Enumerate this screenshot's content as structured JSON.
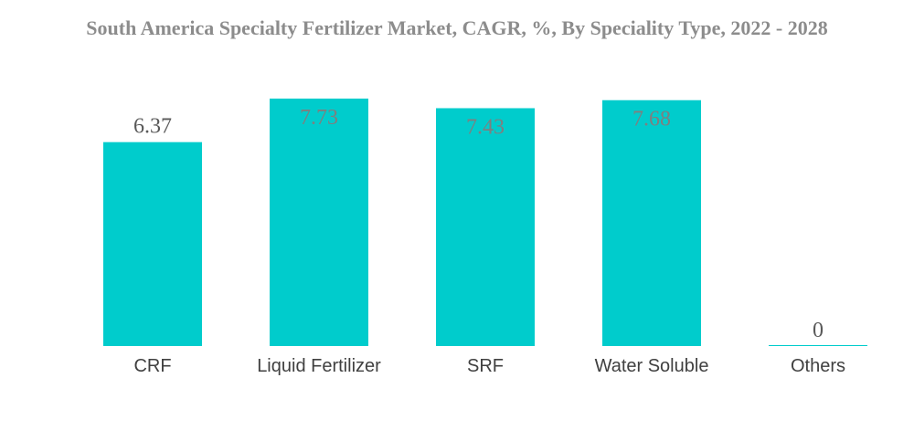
{
  "chart_data": {
    "type": "bar",
    "title": "South America Specialty Fertilizer Market, CAGR, %, By Speciality Type, 2022 - 2028",
    "categories": [
      "CRF",
      "Liquid Fertilizer",
      "SRF",
      "Water Soluble",
      "Others"
    ],
    "values": [
      6.37,
      7.73,
      7.43,
      7.68,
      0
    ],
    "value_labels": [
      "6.37",
      "7.73",
      "7.43",
      "7.68",
      "0"
    ],
    "xlabel": "",
    "ylabel": "",
    "ylim": [
      0,
      8.1
    ],
    "grid": false,
    "legend": "none"
  },
  "colors": {
    "bar": "#00cccc",
    "label_outside": "#595959",
    "label_inside": "#7f7f7f"
  }
}
